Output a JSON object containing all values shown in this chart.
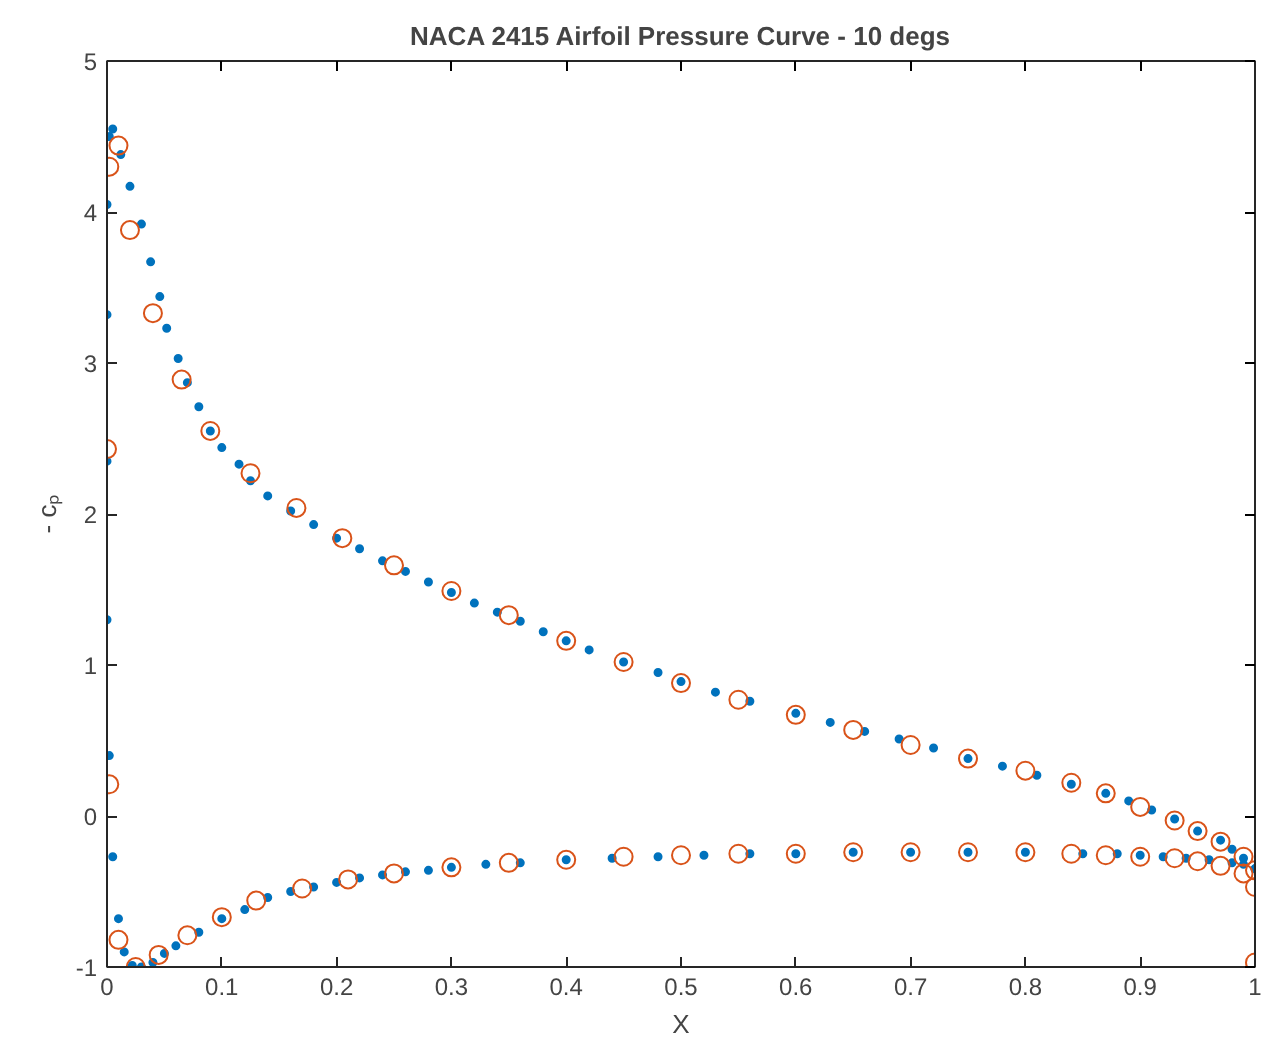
{
  "chart_data": {
    "type": "scatter",
    "title": "NACA 2415 Airfoil Pressure Curve - 10 degs",
    "xlabel": "X",
    "ylabel": "- cₚ",
    "xlim": [
      0,
      1
    ],
    "ylim": [
      -1,
      5
    ],
    "xticks": [
      0,
      0.1,
      0.2,
      0.3,
      0.4,
      0.5,
      0.6,
      0.7,
      0.8,
      0.9,
      1
    ],
    "yticks": [
      -1,
      0,
      1,
      2,
      3,
      4,
      5
    ],
    "grid": false,
    "marker": "circle",
    "series": [
      {
        "color": "#0072bd",
        "x": [
          0.0,
          0.0,
          0.002,
          0.005,
          0.012,
          0.02,
          0.03,
          0.038,
          0.046,
          0.052,
          0.062,
          0.07,
          0.08,
          0.09,
          0.1,
          0.115,
          0.125,
          0.14,
          0.16,
          0.18,
          0.2,
          0.22,
          0.24,
          0.26,
          0.28,
          0.3,
          0.32,
          0.34,
          0.36,
          0.38,
          0.4,
          0.42,
          0.45,
          0.48,
          0.5,
          0.53,
          0.56,
          0.6,
          0.63,
          0.66,
          0.69,
          0.72,
          0.75,
          0.78,
          0.81,
          0.84,
          0.87,
          0.89,
          0.91,
          0.93,
          0.95,
          0.97,
          0.98,
          0.99,
          1.0,
          0.0,
          0.0,
          0.002,
          0.005,
          0.01,
          0.015,
          0.022,
          0.03,
          0.04,
          0.05,
          0.06,
          0.08,
          0.1,
          0.12,
          0.14,
          0.16,
          0.18,
          0.2,
          0.22,
          0.24,
          0.26,
          0.28,
          0.3,
          0.33,
          0.36,
          0.4,
          0.44,
          0.48,
          0.52,
          0.56,
          0.6,
          0.65,
          0.7,
          0.75,
          0.8,
          0.85,
          0.88,
          0.9,
          0.92,
          0.94,
          0.96,
          0.98,
          0.99,
          1.0
        ],
        "values": [
          3.32,
          4.05,
          4.5,
          4.55,
          4.38,
          4.17,
          3.92,
          3.67,
          3.44,
          3.23,
          3.03,
          2.87,
          2.71,
          2.55,
          2.44,
          2.33,
          2.22,
          2.12,
          2.02,
          1.93,
          1.84,
          1.77,
          1.69,
          1.62,
          1.55,
          1.48,
          1.41,
          1.35,
          1.29,
          1.22,
          1.16,
          1.1,
          1.02,
          0.95,
          0.89,
          0.82,
          0.76,
          0.68,
          0.62,
          0.56,
          0.51,
          0.45,
          0.38,
          0.33,
          0.27,
          0.21,
          0.15,
          0.1,
          0.04,
          -0.02,
          -0.1,
          -0.16,
          -0.22,
          -0.28,
          -0.35,
          2.35,
          1.3,
          0.4,
          -0.27,
          -0.68,
          -0.9,
          -0.99,
          -1.0,
          -0.97,
          -0.91,
          -0.86,
          -0.77,
          -0.68,
          -0.62,
          -0.54,
          -0.5,
          -0.47,
          -0.44,
          -0.41,
          -0.39,
          -0.37,
          -0.36,
          -0.34,
          -0.32,
          -0.31,
          -0.29,
          -0.28,
          -0.27,
          -0.26,
          -0.25,
          -0.25,
          -0.24,
          -0.24,
          -0.24,
          -0.24,
          -0.25,
          -0.25,
          -0.26,
          -0.27,
          -0.28,
          -0.29,
          -0.31,
          -0.32,
          -0.35
        ]
      },
      {
        "color": "#d95319",
        "x": [
          0.002,
          0.01,
          0.02,
          0.04,
          0.065,
          0.09,
          0.125,
          0.165,
          0.205,
          0.25,
          0.3,
          0.35,
          0.4,
          0.45,
          0.5,
          0.55,
          0.6,
          0.65,
          0.7,
          0.75,
          0.8,
          0.84,
          0.87,
          0.9,
          0.93,
          0.95,
          0.97,
          0.99,
          1.0,
          0.0,
          0.002,
          0.01,
          0.025,
          0.045,
          0.07,
          0.1,
          0.13,
          0.17,
          0.21,
          0.25,
          0.3,
          0.35,
          0.4,
          0.45,
          0.5,
          0.55,
          0.6,
          0.65,
          0.7,
          0.75,
          0.8,
          0.84,
          0.87,
          0.9,
          0.93,
          0.95,
          0.97,
          0.99,
          1.0,
          1.0
        ],
        "values": [
          4.3,
          4.44,
          3.88,
          3.33,
          2.89,
          2.55,
          2.27,
          2.04,
          1.84,
          1.66,
          1.49,
          1.33,
          1.16,
          1.02,
          0.88,
          0.77,
          0.67,
          0.57,
          0.47,
          0.38,
          0.3,
          0.22,
          0.15,
          0.06,
          -0.03,
          -0.1,
          -0.17,
          -0.27,
          -0.36,
          2.43,
          0.21,
          -0.82,
          -1.0,
          -0.92,
          -0.79,
          -0.67,
          -0.56,
          -0.48,
          -0.42,
          -0.38,
          -0.34,
          -0.31,
          -0.29,
          -0.27,
          -0.26,
          -0.25,
          -0.25,
          -0.24,
          -0.24,
          -0.24,
          -0.24,
          -0.25,
          -0.26,
          -0.27,
          -0.28,
          -0.3,
          -0.33,
          -0.38,
          -0.47,
          -0.97
        ]
      }
    ]
  }
}
